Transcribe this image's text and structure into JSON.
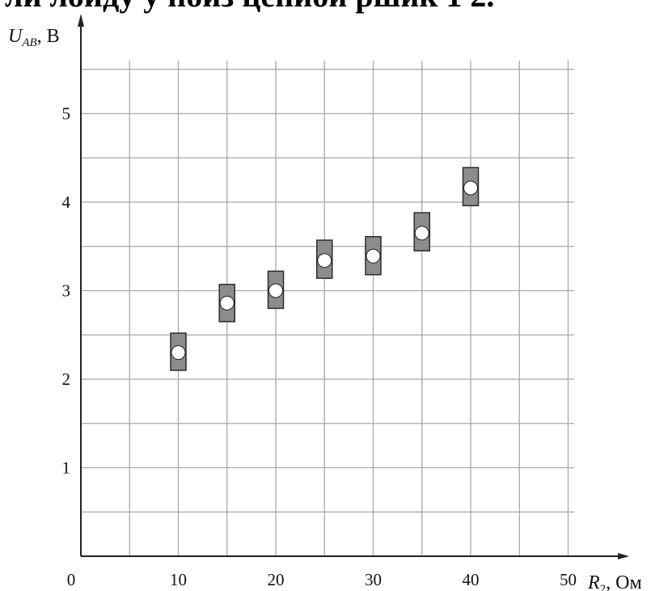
{
  "top_partial_text": "ли лоиду у поиз цепиои ршик 1 2.",
  "chart_data": {
    "type": "scatter",
    "title": "",
    "xlabel": {
      "main": "R",
      "sub": "2",
      "unit": ", Ом"
    },
    "ylabel": {
      "main": "U",
      "sub": "AB",
      "unit": ", В"
    },
    "xlim": [
      0,
      50
    ],
    "ylim": [
      0,
      5.4
    ],
    "x_ticks": [
      {
        "value": 0,
        "label": "0"
      },
      {
        "value": 10,
        "label": "10"
      },
      {
        "value": 20,
        "label": "20"
      },
      {
        "value": 30,
        "label": "30"
      },
      {
        "value": 40,
        "label": "40"
      },
      {
        "value": 50,
        "label": "50"
      }
    ],
    "y_ticks": [
      {
        "value": 1,
        "label": "1"
      },
      {
        "value": 2,
        "label": "2"
      },
      {
        "value": 3,
        "label": "3"
      },
      {
        "value": 4,
        "label": "4"
      },
      {
        "value": 5,
        "label": "5"
      }
    ],
    "grid": true,
    "x_grid_step": 5,
    "y_grid_step": 0.5,
    "points": [
      {
        "x": 10,
        "y": 2.3,
        "err_low": 2.1,
        "err_high": 2.52
      },
      {
        "x": 15,
        "y": 2.86,
        "err_low": 2.65,
        "err_high": 3.07
      },
      {
        "x": 20,
        "y": 3.0,
        "err_low": 2.8,
        "err_high": 3.22
      },
      {
        "x": 25,
        "y": 3.34,
        "err_low": 3.14,
        "err_high": 3.57
      },
      {
        "x": 30,
        "y": 3.39,
        "err_low": 3.18,
        "err_high": 3.61
      },
      {
        "x": 35,
        "y": 3.65,
        "err_low": 3.45,
        "err_high": 3.88
      },
      {
        "x": 40,
        "y": 4.16,
        "err_low": 3.96,
        "err_high": 4.39
      }
    ],
    "marker_colors": {
      "box_fill": "#8c8c8c",
      "box_stroke": "#2b2b2b",
      "point_fill": "#ffffff",
      "point_stroke": "#222222"
    },
    "axis_color": "#222222",
    "grid_color": "#a8a8a8"
  }
}
